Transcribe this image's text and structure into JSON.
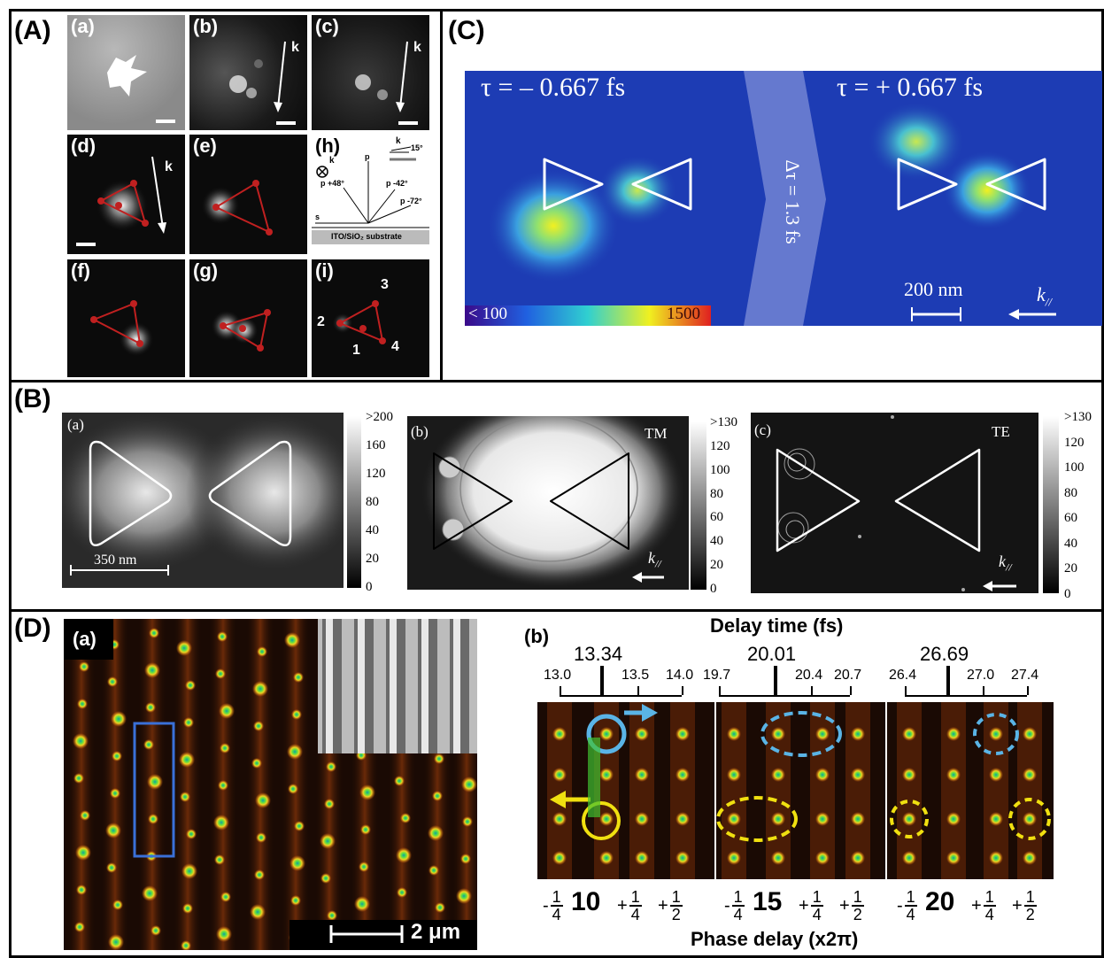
{
  "panels": {
    "A": {
      "label": "(A)",
      "tiles": {
        "a": "(a)",
        "b": "(b)",
        "c": "(c)",
        "d": "(d)",
        "e": "(e)",
        "f": "(f)",
        "g": "(g)",
        "h": "(h)",
        "i": "(i)"
      },
      "k_symbol": "k",
      "schematic": {
        "p48": "p +48°",
        "p": "p",
        "p_neg42": "p -42°",
        "p_neg72": "p -72°",
        "s": "s",
        "angle15": "15°",
        "k_vec": "k",
        "substrate": "ITO/SiO₂ substrate"
      },
      "site_numbers": [
        "1",
        "2",
        "3",
        "4"
      ]
    },
    "B": {
      "label": "(B)",
      "a": {
        "label": "(a)",
        "scalebar": "350 nm",
        "ticks": [
          ">200",
          "160",
          "120",
          "80",
          "40",
          "20",
          "0"
        ]
      },
      "b": {
        "label": "(b)",
        "mode": "TM",
        "k": "k",
        "k_sub": "//",
        "ticks": [
          ">130",
          "120",
          "100",
          "80",
          "60",
          "40",
          "20",
          "0"
        ]
      },
      "c": {
        "label": "(c)",
        "mode": "TE",
        "k": "k",
        "k_sub": "//",
        "ticks": [
          ">130",
          "120",
          "100",
          "80",
          "60",
          "40",
          "20",
          "0"
        ]
      }
    },
    "C": {
      "label": "(C)",
      "tau_left": "τ = – 0.667 fs",
      "tau_right": "τ = + 0.667 fs",
      "delta_tau": "Δτ = 1.3 fs",
      "scalebar": "200 nm",
      "k": "k",
      "k_sub": "//",
      "colorbar_min": "< 100",
      "colorbar_max": "1500"
    },
    "D": {
      "label": "(D)",
      "a": {
        "label": "(a)",
        "scalebar": "2 μm"
      },
      "b": {
        "label": "(b)",
        "delay_title": "Delay time (fs)",
        "major_ticks": [
          "13.34",
          "20.01",
          "26.69"
        ],
        "minor_ticks": [
          "13.0",
          "13.5",
          "14.0",
          "19.7",
          "20.4",
          "20.7",
          "26.4",
          "27.0",
          "27.4"
        ],
        "phase_title": "Phase delay (x2π)",
        "phase_groups": [
          {
            "minus": "-",
            "center": "10",
            "plus1": "+",
            "plus2": "+"
          },
          {
            "minus": "-",
            "center": "15",
            "plus1": "+",
            "plus2": "+"
          },
          {
            "minus": "-",
            "center": "20",
            "plus1": "+",
            "plus2": "+"
          }
        ],
        "frac_one": "1",
        "frac_four": "4",
        "frac_two": "2"
      }
    }
  },
  "colors": {
    "frame": "#000000",
    "plasmon_blue": "#2a55c8",
    "red_triangle": "#c02020",
    "arrow_cyan": "#5ab4e6",
    "arrow_yellow": "#f0e010"
  }
}
